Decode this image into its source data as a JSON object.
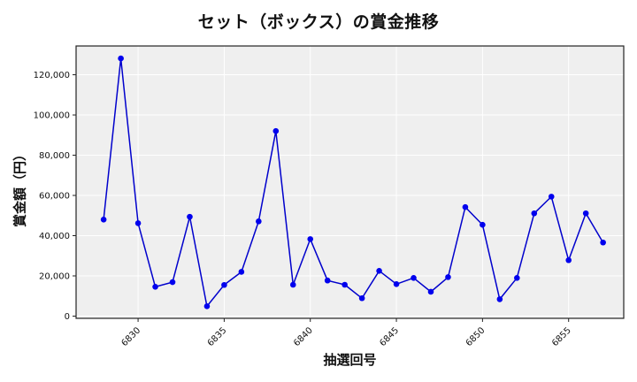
{
  "chart_data": {
    "type": "line",
    "title": "セット（ボックス）の賞金推移",
    "xlabel": "抽選回号",
    "ylabel": "賞金額（円）",
    "x": [
      6828,
      6829,
      6830,
      6831,
      6832,
      6833,
      6834,
      6835,
      6836,
      6837,
      6838,
      6839,
      6840,
      6841,
      6842,
      6843,
      6844,
      6845,
      6846,
      6847,
      6848,
      6849,
      6850,
      6851,
      6852,
      6853,
      6854,
      6855,
      6856,
      6857
    ],
    "series": [
      {
        "name": "賞金額",
        "color": "#0000ee",
        "values": [
          48000,
          128100,
          46200,
          14600,
          16900,
          49400,
          4900,
          15500,
          22000,
          47100,
          92000,
          15600,
          38300,
          17700,
          15600,
          8900,
          22500,
          15900,
          19000,
          12100,
          19400,
          54200,
          45400,
          8400,
          19000,
          51100,
          59400,
          27800,
          51100,
          36600
        ]
      }
    ],
    "xticks": [
      6830,
      6835,
      6840,
      6845,
      6850,
      6855
    ],
    "yticks": [
      0,
      20000,
      40000,
      60000,
      80000,
      100000,
      120000
    ],
    "ytick_labels": [
      "0",
      "20,000",
      "40,000",
      "60,000",
      "80,000",
      "100,000",
      "120,000"
    ],
    "xlim": [
      6826.4,
      6858.2
    ],
    "ylim": [
      -1100,
      134300
    ],
    "grid": true,
    "legend": null,
    "colors": {
      "background": "#efefef",
      "grid": "#ffffff",
      "line": "#0000cc",
      "marker": "#0000ee",
      "frame": "#222222"
    }
  }
}
